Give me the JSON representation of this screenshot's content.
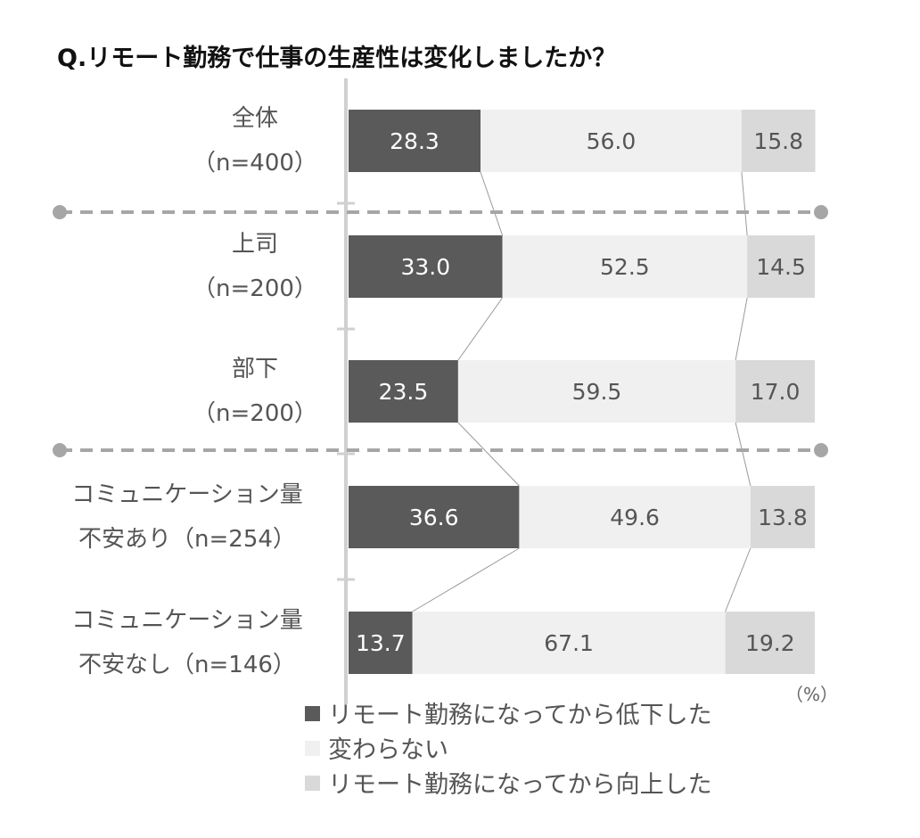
{
  "chart_data": {
    "type": "bar",
    "stacked": true,
    "orientation": "horizontal",
    "normalized_percent": true,
    "title": "Q.リモート勤務で仕事の生産性は変化しましたか？",
    "unit_label": "（%）",
    "categories": [
      [
        "全体",
        "（n=400）"
      ],
      [
        "上司",
        "（n=200）"
      ],
      [
        "部下",
        "（n=200）"
      ],
      [
        "コミュニケーション量",
        "不安あり（n=254）"
      ],
      [
        "コミュニケーション量",
        "不安なし（n=146）"
      ]
    ],
    "series": [
      {
        "name": "リモート勤務になってから低下した",
        "color": "#5a5a5a",
        "text_color": "#ffffff",
        "values": [
          28.3,
          33.0,
          23.5,
          36.6,
          13.7
        ],
        "labels": [
          "28.3",
          "33.0",
          "23.5",
          "36.6",
          "13.7"
        ]
      },
      {
        "name": "変わらない",
        "color": "#f0f0f0",
        "text_color": "#555555",
        "values": [
          56.0,
          52.5,
          59.5,
          49.6,
          67.1
        ],
        "labels": [
          "56.0",
          "52.5",
          "59.5",
          "49.6",
          "67.1"
        ]
      },
      {
        "name": "リモート勤務になってから向上した",
        "color": "#d9d9d9",
        "text_color": "#555555",
        "values": [
          15.8,
          14.5,
          17.0,
          13.8,
          19.2
        ],
        "labels": [
          "15.8",
          "14.5",
          "17.0",
          "13.8",
          "19.2"
        ]
      }
    ],
    "xlim": [
      0,
      100
    ],
    "group_separators_after": [
      0,
      2
    ],
    "legend_position": "bottom",
    "grid": false,
    "connector_lines": true
  }
}
